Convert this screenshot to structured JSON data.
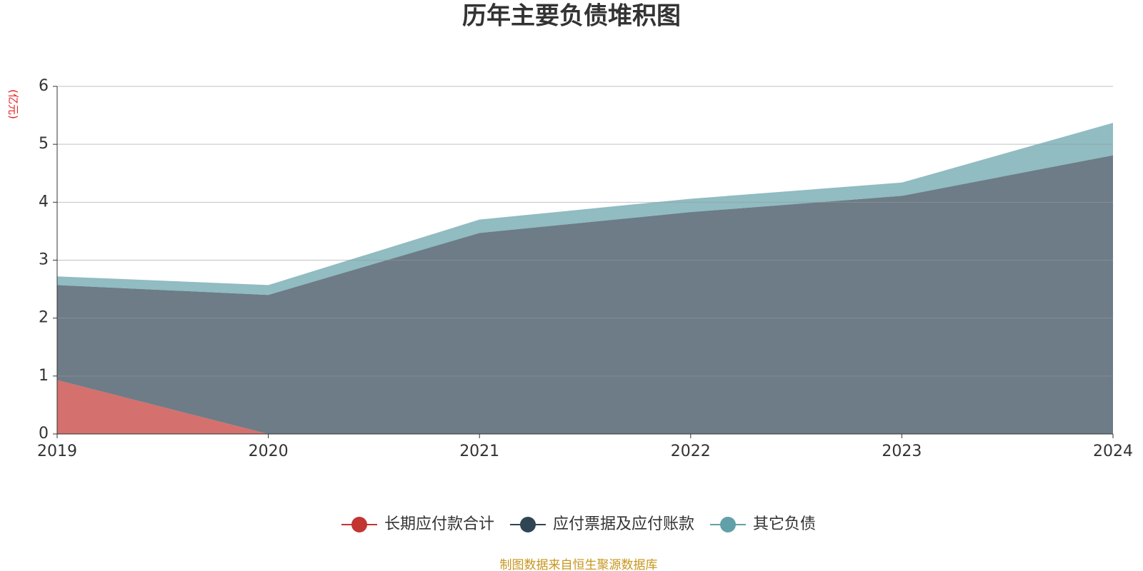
{
  "chart_data": {
    "type": "stacked_area",
    "title": "历年主要负债堆积图",
    "y_label": "(亿元)",
    "categories": [
      "2019",
      "2020",
      "2021",
      "2022",
      "2023",
      "2024"
    ],
    "series": [
      {
        "name": "长期应付款合计",
        "color": "#c23531",
        "values": [
          0.93,
          0,
          0,
          0,
          0,
          0
        ]
      },
      {
        "name": "应付票据及应付账款",
        "color": "#2f4554",
        "values": [
          1.64,
          2.4,
          3.47,
          3.83,
          4.11,
          4.81
        ]
      },
      {
        "name": "其它负债",
        "color": "#61a0a8",
        "values": [
          0.15,
          0.17,
          0.23,
          0.23,
          0.23,
          0.56
        ]
      }
    ],
    "ylim": [
      0,
      6
    ],
    "yticks": [
      0,
      1,
      2,
      3,
      4,
      5,
      6
    ],
    "grid": true,
    "source": "制图数据来自恒生聚源数据库"
  }
}
